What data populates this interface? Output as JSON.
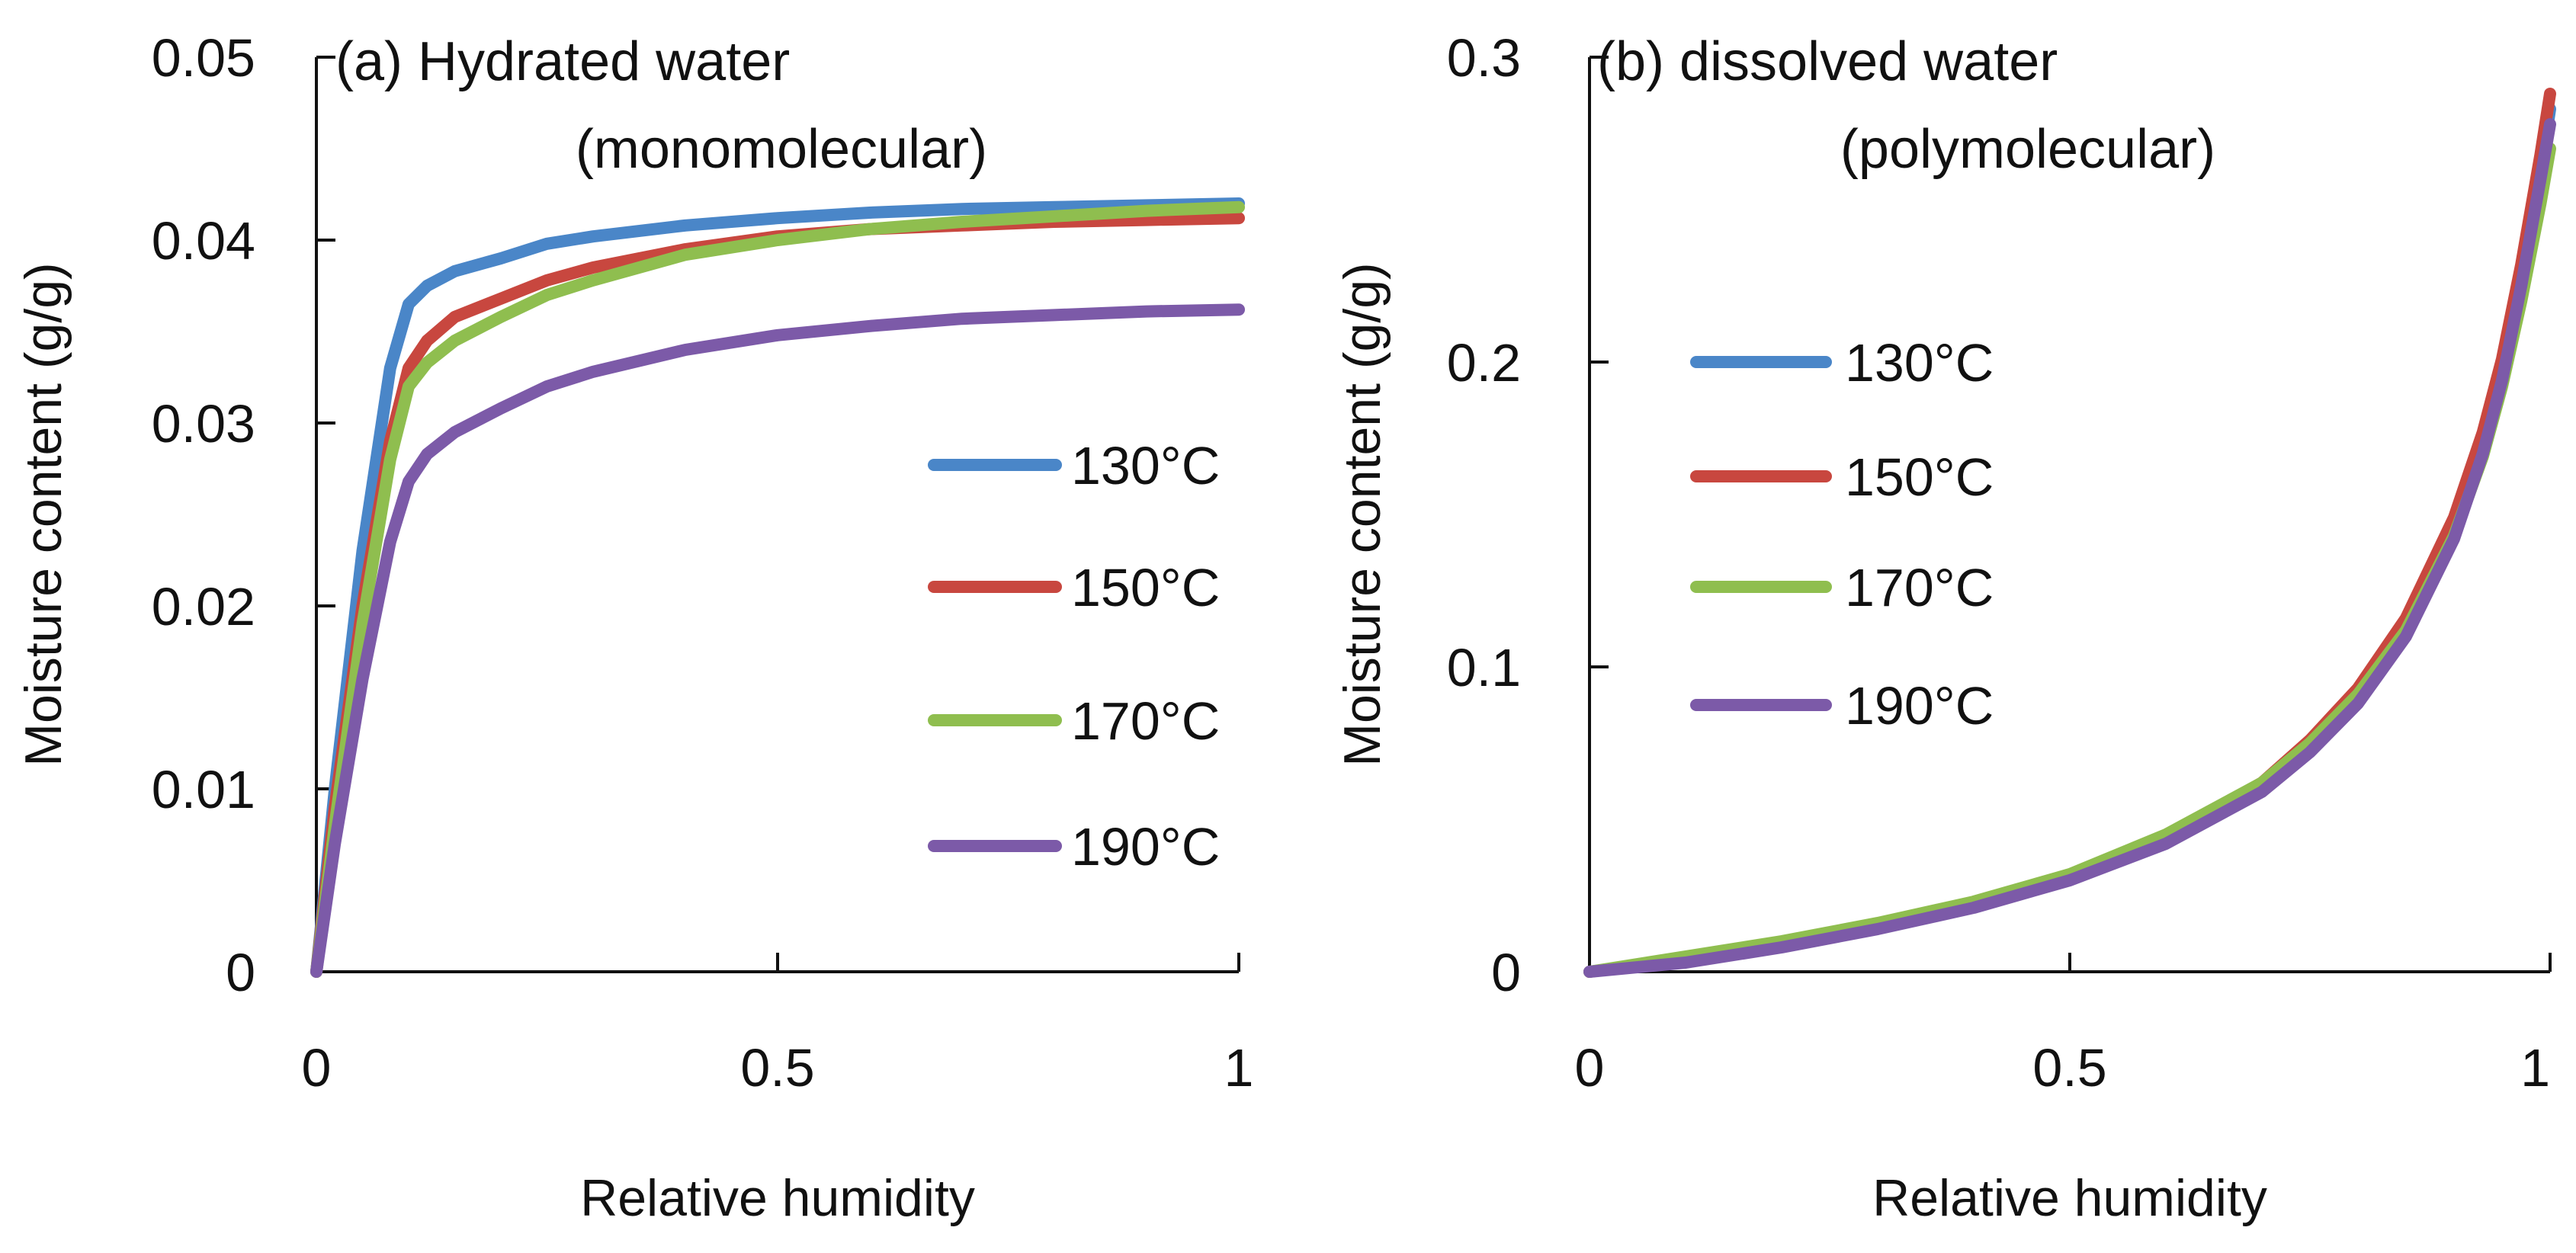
{
  "chart_data": [
    {
      "type": "line",
      "panel": "a",
      "title_line1": "(a) Hydrated water",
      "title_line2": "(monomolecular)",
      "xlabel": "Relative humidity",
      "ylabel": "Moisture content (g/g)",
      "xlim": [
        0,
        1
      ],
      "ylim": [
        0,
        0.05
      ],
      "x_ticks": [
        "0",
        "0.5",
        "1"
      ],
      "x_tick_values": [
        0,
        0.5,
        1
      ],
      "y_ticks": [
        "0",
        "0.01",
        "0.02",
        "0.03",
        "0.04",
        "0.05"
      ],
      "y_tick_values": [
        0,
        0.01,
        0.02,
        0.03,
        0.04,
        0.05
      ],
      "grid": false,
      "legend_position": "right",
      "series": [
        {
          "name": "130°C",
          "color": "#4a86c8",
          "x": [
            0,
            0.02,
            0.05,
            0.08,
            0.1,
            0.12,
            0.15,
            0.2,
            0.25,
            0.3,
            0.4,
            0.5,
            0.6,
            0.7,
            0.8,
            0.9,
            1.0
          ],
          "y": [
            0,
            0.01,
            0.023,
            0.033,
            0.0365,
            0.0375,
            0.0383,
            0.039,
            0.0398,
            0.0402,
            0.0408,
            0.0412,
            0.0415,
            0.0417,
            0.0418,
            0.0419,
            0.042
          ]
        },
        {
          "name": "150°C",
          "color": "#c8473f",
          "x": [
            0,
            0.02,
            0.05,
            0.08,
            0.1,
            0.12,
            0.15,
            0.2,
            0.25,
            0.3,
            0.4,
            0.5,
            0.6,
            0.7,
            0.8,
            0.9,
            1.0
          ],
          "y": [
            0,
            0.009,
            0.02,
            0.029,
            0.033,
            0.0345,
            0.0358,
            0.0368,
            0.0378,
            0.0385,
            0.0395,
            0.0402,
            0.0406,
            0.0408,
            0.041,
            0.0411,
            0.0412
          ]
        },
        {
          "name": "170°C",
          "color": "#8fbe4f",
          "x": [
            0,
            0.02,
            0.05,
            0.08,
            0.1,
            0.12,
            0.15,
            0.2,
            0.25,
            0.3,
            0.4,
            0.5,
            0.6,
            0.7,
            0.8,
            0.9,
            1.0
          ],
          "y": [
            0,
            0.008,
            0.019,
            0.028,
            0.032,
            0.0333,
            0.0345,
            0.0358,
            0.037,
            0.0378,
            0.0392,
            0.04,
            0.0406,
            0.041,
            0.0413,
            0.0416,
            0.0418
          ]
        },
        {
          "name": "190°C",
          "color": "#7c5aa8",
          "x": [
            0,
            0.02,
            0.05,
            0.08,
            0.1,
            0.12,
            0.15,
            0.2,
            0.25,
            0.3,
            0.4,
            0.5,
            0.6,
            0.7,
            0.8,
            0.9,
            1.0
          ],
          "y": [
            0,
            0.007,
            0.016,
            0.0235,
            0.0268,
            0.0283,
            0.0295,
            0.0308,
            0.032,
            0.0328,
            0.034,
            0.0348,
            0.0353,
            0.0357,
            0.0359,
            0.0361,
            0.0362
          ]
        }
      ]
    },
    {
      "type": "line",
      "panel": "b",
      "title_line1": "(b) dissolved water",
      "title_line2": "(polymolecular)",
      "xlabel": "Relative humidity",
      "ylabel": "Moisture content (g/g)",
      "xlim": [
        0,
        1
      ],
      "ylim": [
        0,
        0.3
      ],
      "x_ticks": [
        "0",
        "0.5",
        "1"
      ],
      "x_tick_values": [
        0,
        0.5,
        1
      ],
      "y_ticks": [
        "0",
        "0.1",
        "0.2",
        "0.3"
      ],
      "y_tick_values": [
        0,
        0.1,
        0.2,
        0.3
      ],
      "grid": false,
      "legend_position": "left",
      "series": [
        {
          "name": "130°C",
          "color": "#4a86c8",
          "x": [
            0,
            0.1,
            0.2,
            0.3,
            0.4,
            0.5,
            0.6,
            0.7,
            0.75,
            0.8,
            0.85,
            0.9,
            0.93,
            0.95,
            0.97,
            0.99,
            1.0
          ],
          "y": [
            0,
            0.004,
            0.009,
            0.015,
            0.022,
            0.031,
            0.043,
            0.061,
            0.074,
            0.091,
            0.113,
            0.145,
            0.172,
            0.196,
            0.226,
            0.262,
            0.283
          ]
        },
        {
          "name": "150°C",
          "color": "#c8473f",
          "x": [
            0,
            0.1,
            0.2,
            0.3,
            0.4,
            0.5,
            0.6,
            0.7,
            0.75,
            0.8,
            0.85,
            0.9,
            0.93,
            0.95,
            0.97,
            0.99,
            1.0
          ],
          "y": [
            0,
            0.004,
            0.009,
            0.015,
            0.022,
            0.031,
            0.044,
            0.062,
            0.076,
            0.093,
            0.116,
            0.149,
            0.177,
            0.201,
            0.232,
            0.268,
            0.288
          ]
        },
        {
          "name": "170°C",
          "color": "#8fbe4f",
          "x": [
            0,
            0.1,
            0.2,
            0.3,
            0.4,
            0.5,
            0.6,
            0.7,
            0.75,
            0.8,
            0.85,
            0.9,
            0.93,
            0.95,
            0.97,
            0.99,
            1.0
          ],
          "y": [
            0,
            0.005,
            0.01,
            0.016,
            0.023,
            0.032,
            0.045,
            0.062,
            0.075,
            0.091,
            0.112,
            0.143,
            0.169,
            0.192,
            0.22,
            0.252,
            0.27
          ]
        },
        {
          "name": "190°C",
          "color": "#7c5aa8",
          "x": [
            0,
            0.1,
            0.2,
            0.3,
            0.4,
            0.5,
            0.6,
            0.7,
            0.75,
            0.8,
            0.85,
            0.9,
            0.93,
            0.95,
            0.97,
            0.99,
            1.0
          ],
          "y": [
            0,
            0.003,
            0.008,
            0.014,
            0.021,
            0.03,
            0.042,
            0.059,
            0.072,
            0.088,
            0.11,
            0.142,
            0.17,
            0.194,
            0.225,
            0.26,
            0.278
          ]
        }
      ]
    }
  ]
}
